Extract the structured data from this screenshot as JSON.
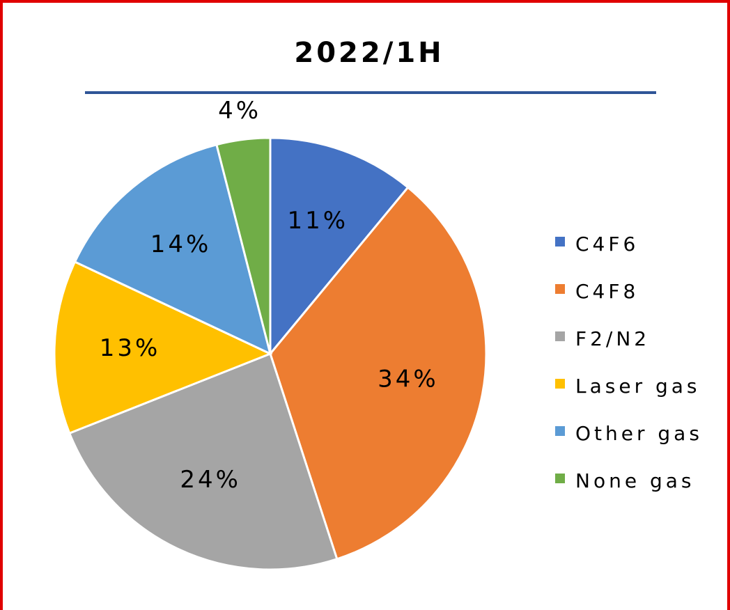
{
  "chart_data": {
    "type": "pie",
    "title": "2022/1H",
    "categories": [
      "C4F6",
      "C4F8",
      "F2/N2",
      "Laser gas",
      "Other gas",
      "None gas"
    ],
    "values": [
      11,
      34,
      24,
      13,
      14,
      4
    ],
    "value_labels": [
      "11%",
      "34%",
      "24%",
      "13%",
      "14%",
      "4%"
    ],
    "colors": [
      "#4472c4",
      "#ed7d31",
      "#a5a5a5",
      "#ffc000",
      "#5b9bd5",
      "#70ad47"
    ],
    "legend": "right"
  }
}
